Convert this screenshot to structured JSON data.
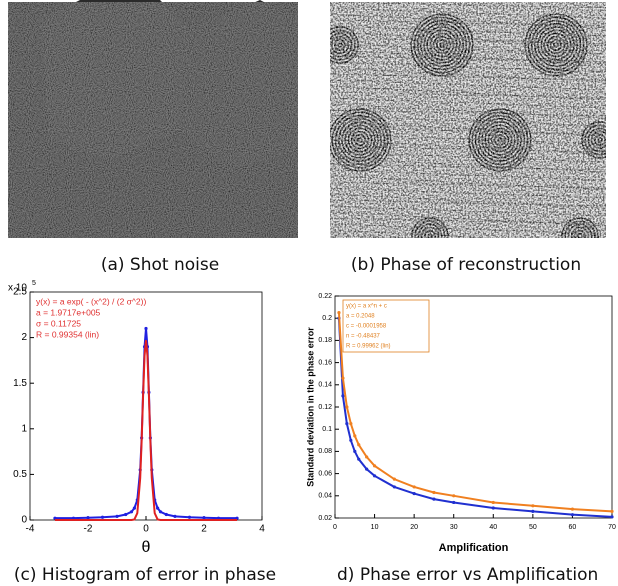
{
  "panels": [
    {
      "caption": "(a) Shot noise"
    },
    {
      "caption": "(b) Phase of reconstruction"
    }
  ],
  "chart_data": [
    {
      "type": "line",
      "caption": "(c) Histogram of error in phase",
      "x_label": "θ",
      "y_multiplier": "x 10",
      "y_multiplier_exp": "5",
      "annotation": [
        "y(x) = a exp( - (x^2) / (2 σ^2))",
        "a = 1.9717e+005",
        "σ = 0.11725",
        "R = 0.99354  (lin)"
      ],
      "annotation_color": "#e03030",
      "x": [
        -3.14,
        -2.5,
        -2,
        -1.5,
        -1,
        -0.7,
        -0.5,
        -0.4,
        -0.3,
        -0.2,
        -0.15,
        -0.1,
        -0.05,
        0,
        0.05,
        0.1,
        0.15,
        0.2,
        0.3,
        0.4,
        0.5,
        0.7,
        1,
        1.5,
        2,
        2.5,
        3.14
      ],
      "series": [
        {
          "color": "#2020e0",
          "markers": true,
          "values": [
            2000,
            2000,
            2500,
            3000,
            4000,
            6000,
            9000,
            13000,
            22000,
            55000,
            90000,
            140000,
            190000,
            210000,
            190000,
            140000,
            90000,
            55000,
            22000,
            13000,
            9000,
            6000,
            4000,
            3000,
            2500,
            2000,
            2000
          ]
        },
        {
          "color": "#e02020",
          "markers": false,
          "values": [
            0,
            0,
            0,
            0,
            0,
            0,
            0,
            590,
            7500,
            46000,
            87000,
            137000,
            180000,
            197170,
            180000,
            137000,
            87000,
            46000,
            7500,
            590,
            0,
            0,
            0,
            0,
            0,
            0,
            0
          ]
        }
      ],
      "xlim": [
        -4,
        4
      ],
      "xticks": [
        -4,
        -2,
        0,
        2,
        4
      ],
      "ylim": [
        0,
        250000
      ],
      "yticks": [
        0,
        {
          "value": 50000,
          "label": "0.5"
        },
        {
          "value": 100000,
          "label": "1"
        },
        {
          "value": 150000,
          "label": "1.5"
        },
        {
          "value": 200000,
          "label": "2"
        },
        {
          "value": 250000,
          "label": "2.5"
        }
      ]
    },
    {
      "type": "line",
      "caption": "d) Phase error vs Amplification",
      "x_label": "Amplification",
      "y_label": "Standard deviation in the phase error",
      "annotation": [
        "y(x) = a x^n + c",
        "a = 0.2048",
        "c = -0.0001958",
        "n = -0.48437",
        "R = 0.99962  (lin)"
      ],
      "annotation_color": "#e08020",
      "x": [
        1,
        2,
        3,
        4,
        5,
        6,
        8,
        10,
        15,
        20,
        25,
        30,
        40,
        50,
        60,
        70
      ],
      "series": [
        {
          "color": "#2030d0",
          "markers": true,
          "values": [
            0.2,
            0.13,
            0.105,
            0.09,
            0.08,
            0.073,
            0.064,
            0.058,
            0.048,
            0.042,
            0.037,
            0.034,
            0.029,
            0.026,
            0.023,
            0.021
          ]
        },
        {
          "color": "#f08020",
          "markers": true,
          "values": [
            0.205,
            0.146,
            0.12,
            0.105,
            0.094,
            0.086,
            0.075,
            0.067,
            0.055,
            0.048,
            0.043,
            0.04,
            0.034,
            0.031,
            0.028,
            0.026
          ]
        }
      ],
      "xlim": [
        0,
        70
      ],
      "xticks": [
        0,
        10,
        20,
        30,
        40,
        50,
        60,
        70
      ],
      "ylim": [
        0.02,
        0.22
      ],
      "yticks": [
        0.02,
        0.04,
        0.06,
        0.08,
        0.1,
        0.12,
        0.14,
        0.16,
        0.18,
        0.2,
        0.22
      ]
    }
  ]
}
